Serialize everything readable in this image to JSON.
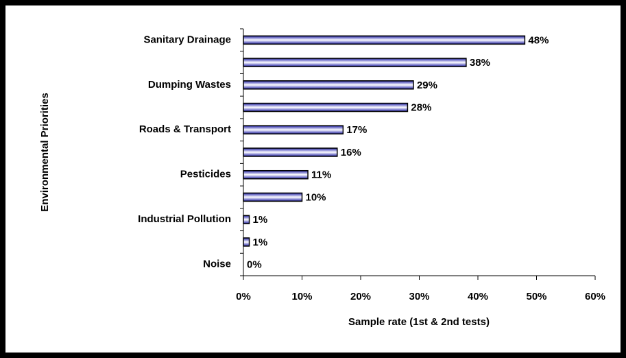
{
  "chart_data": {
    "type": "bar",
    "orientation": "horizontal",
    "y_axis_label": "Environmental Priorities",
    "x_axis_label": "Sample rate (1st & 2nd tests)",
    "categories": [
      "Sanitary Drainage",
      null,
      "Dumping Wastes",
      null,
      "Roads & Transport",
      null,
      "Pesticides",
      null,
      "Industrial Pollution",
      null,
      "Noise"
    ],
    "values": [
      48,
      38,
      29,
      28,
      17,
      16,
      11,
      10,
      1,
      1,
      0
    ],
    "value_labels": [
      "48%",
      "38%",
      "29%",
      "28%",
      "17%",
      "16%",
      "11%",
      "10%",
      "1%",
      "1%",
      "0%"
    ],
    "color": "#1a1a8c",
    "xlim": [
      0,
      60
    ],
    "xticks": [
      {
        "value": 0,
        "label": "0%"
      },
      {
        "value": 10,
        "label": "10%"
      },
      {
        "value": 20,
        "label": "20%"
      },
      {
        "value": 30,
        "label": "30%"
      },
      {
        "value": 40,
        "label": "40%"
      },
      {
        "value": 50,
        "label": "50%"
      },
      {
        "value": 60,
        "label": "60%"
      }
    ],
    "grid": false
  }
}
